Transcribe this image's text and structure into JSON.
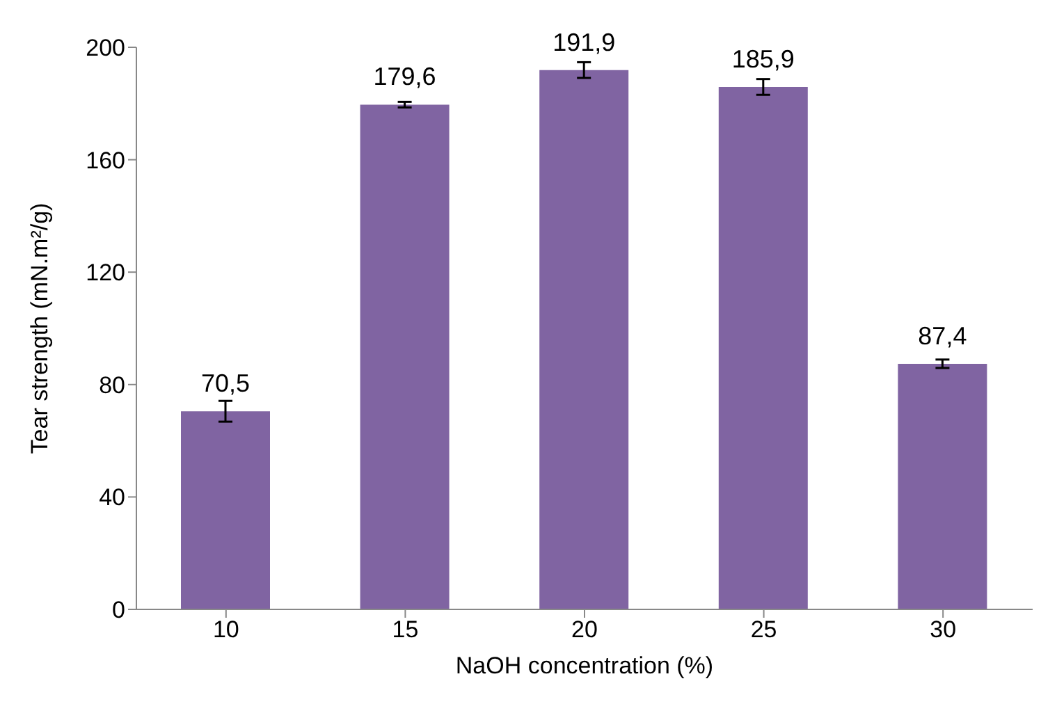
{
  "chart_data": {
    "type": "bar",
    "xlabel": "NaOH concentration (%)",
    "ylabel": "Tear strength (mN.m²/g)",
    "categories": [
      "10",
      "15",
      "20",
      "25",
      "30"
    ],
    "values": [
      70.5,
      179.6,
      191.9,
      185.9,
      87.4
    ],
    "errors": [
      3.7,
      1,
      2.8,
      2.8,
      1.5
    ],
    "value_labels": [
      "70,5",
      "179,6",
      "191,9",
      "185,9",
      "87,4"
    ],
    "color": "#8064a2",
    "ylim": [
      0,
      200
    ],
    "yticks": [
      0,
      40,
      80,
      120,
      160,
      200
    ],
    "grid": false,
    "legend": false
  }
}
